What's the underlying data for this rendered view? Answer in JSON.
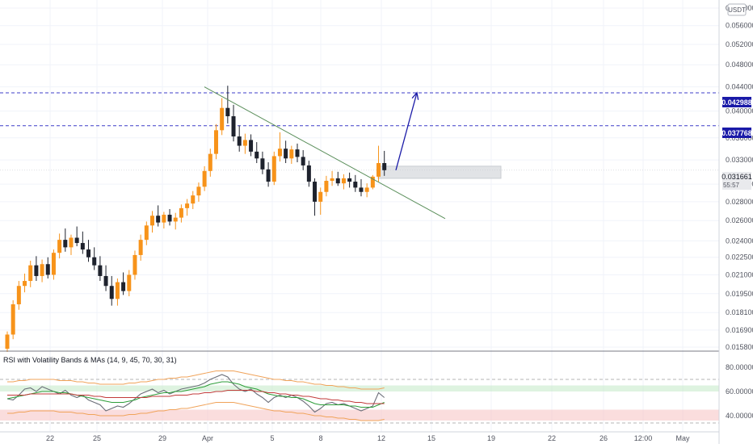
{
  "currency": "USDT",
  "indicator_title": "RSI with Volatility Bands & MAs (14, 9, 45, 70, 30, 31)",
  "price_axis": {
    "ticks": [
      "0.060000",
      "0.056000",
      "0.052000",
      "0.048000",
      "0.044000",
      "0.040000",
      "0.036000",
      "0.033000",
      "0.030000",
      "0.028000",
      "0.026000",
      "0.024000",
      "0.022500",
      "0.021000",
      "0.019500",
      "0.018100",
      "0.016900",
      "0.015800"
    ]
  },
  "rsi_axis": {
    "ticks": [
      "80.000000",
      "60.000000",
      "40.000000"
    ]
  },
  "date_axis": {
    "ticks": [
      "22",
      "25",
      "29",
      "Apr",
      "5",
      "8",
      "12",
      "15",
      "19",
      "22",
      "26",
      "12:00",
      "May"
    ]
  },
  "level_labels": [
    {
      "text": "0.042988",
      "color": "#1a1aa8"
    },
    {
      "text": "0.037768",
      "color": "#1a1aa8"
    }
  ],
  "current_price": {
    "text": "0.031661",
    "countdown": "55:57"
  },
  "colors": {
    "up": "#f7931a",
    "down": "#1e222d",
    "level": "#3d3dc8",
    "trend": "#5b8f5b",
    "arrow": "#1c1ca8"
  },
  "chart_data": {
    "type": "candlestick",
    "scale": "log",
    "grid": true,
    "ylim": [
      0.0158,
      0.06
    ],
    "levels": [
      0.042988,
      0.037768
    ],
    "candles": [
      [
        0.0157,
        0.0168,
        0.0155,
        0.0166
      ],
      [
        0.0166,
        0.019,
        0.0163,
        0.0187
      ],
      [
        0.0187,
        0.0205,
        0.0183,
        0.0201
      ],
      [
        0.0201,
        0.0211,
        0.0196,
        0.0205
      ],
      [
        0.0205,
        0.0222,
        0.02,
        0.0218
      ],
      [
        0.0218,
        0.0226,
        0.0205,
        0.0209
      ],
      [
        0.0209,
        0.0223,
        0.0204,
        0.0219
      ],
      [
        0.0219,
        0.0225,
        0.0207,
        0.021
      ],
      [
        0.021,
        0.0232,
        0.0206,
        0.0229
      ],
      [
        0.0229,
        0.0247,
        0.0224,
        0.0241
      ],
      [
        0.0241,
        0.0252,
        0.023,
        0.0234
      ],
      [
        0.0234,
        0.0246,
        0.0227,
        0.0243
      ],
      [
        0.0243,
        0.0254,
        0.0235,
        0.0238
      ],
      [
        0.0238,
        0.0249,
        0.0228,
        0.0232
      ],
      [
        0.0232,
        0.0241,
        0.0221,
        0.0225
      ],
      [
        0.0225,
        0.0234,
        0.0214,
        0.0218
      ],
      [
        0.0218,
        0.0226,
        0.0205,
        0.0209
      ],
      [
        0.0209,
        0.0218,
        0.0197,
        0.0201
      ],
      [
        0.0201,
        0.0209,
        0.0186,
        0.0191
      ],
      [
        0.0191,
        0.0207,
        0.0186,
        0.0204
      ],
      [
        0.0204,
        0.0212,
        0.0194,
        0.0197
      ],
      [
        0.0197,
        0.0214,
        0.0193,
        0.021
      ],
      [
        0.021,
        0.0231,
        0.0206,
        0.0227
      ],
      [
        0.0227,
        0.0246,
        0.0222,
        0.0241
      ],
      [
        0.0241,
        0.0259,
        0.0236,
        0.0255
      ],
      [
        0.0255,
        0.027,
        0.0248,
        0.0265
      ],
      [
        0.0265,
        0.0276,
        0.0254,
        0.0258
      ],
      [
        0.0258,
        0.0269,
        0.0252,
        0.0266
      ],
      [
        0.0266,
        0.0272,
        0.0255,
        0.0259
      ],
      [
        0.0259,
        0.0268,
        0.0251,
        0.0263
      ],
      [
        0.0263,
        0.0277,
        0.0258,
        0.0273
      ],
      [
        0.0273,
        0.0283,
        0.0265,
        0.0278
      ],
      [
        0.0278,
        0.0292,
        0.0272,
        0.0287
      ],
      [
        0.0287,
        0.0302,
        0.028,
        0.0297
      ],
      [
        0.0297,
        0.0322,
        0.0292,
        0.0316
      ],
      [
        0.0316,
        0.0345,
        0.0309,
        0.0338
      ],
      [
        0.0338,
        0.038,
        0.0331,
        0.0371
      ],
      [
        0.0371,
        0.0421,
        0.0364,
        0.0405
      ],
      [
        0.0405,
        0.0442,
        0.0381,
        0.0392
      ],
      [
        0.0392,
        0.041,
        0.0355,
        0.0362
      ],
      [
        0.0362,
        0.0378,
        0.0341,
        0.0349
      ],
      [
        0.0349,
        0.0366,
        0.0338,
        0.0357
      ],
      [
        0.0357,
        0.0365,
        0.0335,
        0.0341
      ],
      [
        0.0341,
        0.0354,
        0.0326,
        0.0332
      ],
      [
        0.0332,
        0.0341,
        0.0312,
        0.0318
      ],
      [
        0.0318,
        0.0327,
        0.0297,
        0.0303
      ],
      [
        0.0303,
        0.0341,
        0.0299,
        0.0335
      ],
      [
        0.0335,
        0.0368,
        0.0328,
        0.0345
      ],
      [
        0.0345,
        0.0356,
        0.0326,
        0.0332
      ],
      [
        0.0332,
        0.0349,
        0.0325,
        0.0344
      ],
      [
        0.0344,
        0.0352,
        0.0327,
        0.0334
      ],
      [
        0.0334,
        0.0343,
        0.0317,
        0.0323
      ],
      [
        0.0323,
        0.0329,
        0.0297,
        0.0303
      ],
      [
        0.0303,
        0.0307,
        0.0265,
        0.028
      ],
      [
        0.028,
        0.0296,
        0.0266,
        0.0291
      ],
      [
        0.0291,
        0.031,
        0.0286,
        0.0304
      ],
      [
        0.0304,
        0.0316,
        0.0298,
        0.0307
      ],
      [
        0.0307,
        0.0315,
        0.0298,
        0.0301
      ],
      [
        0.0301,
        0.0312,
        0.0294,
        0.0307
      ],
      [
        0.0307,
        0.0314,
        0.0296,
        0.0303
      ],
      [
        0.0303,
        0.0311,
        0.0291,
        0.0296
      ],
      [
        0.0296,
        0.0306,
        0.0286,
        0.0291
      ],
      [
        0.0291,
        0.0301,
        0.0285,
        0.0296
      ],
      [
        0.0296,
        0.0311,
        0.0294,
        0.0309
      ],
      [
        0.0309,
        0.0349,
        0.0303,
        0.0326
      ],
      [
        0.0326,
        0.0342,
        0.031,
        0.0317
      ]
    ],
    "trendline": {
      "from": [
        "Mar 31",
        0.044
      ],
      "to": [
        "Apr 14",
        0.0262
      ]
    },
    "target_arrow": {
      "from": [
        "Apr 12",
        0.0317
      ],
      "to": [
        "Apr 13",
        0.043
      ]
    },
    "support_zone": [
      0.0307,
      0.0322
    ],
    "rsi": {
      "ylim": [
        30,
        90
      ],
      "overbought": 70,
      "oversold": 30,
      "band_high": [
        60,
        65
      ],
      "band_low": [
        36,
        45
      ],
      "series": [
        {
          "values": [
            54,
            53,
            57,
            62,
            63,
            60,
            64,
            62,
            60,
            58,
            61,
            57,
            55,
            57,
            53,
            51,
            49,
            44,
            46,
            48,
            47,
            50,
            54,
            58,
            60,
            62,
            59,
            61,
            58,
            60,
            62,
            63,
            64,
            65,
            67,
            70,
            72,
            74,
            72,
            66,
            62,
            60,
            62,
            58,
            55,
            51,
            55,
            57,
            55,
            57,
            55,
            52,
            48,
            43,
            46,
            50,
            51,
            49,
            50,
            48,
            46,
            44,
            46,
            48,
            59,
            55
          ]
        },
        {
          "values": [
            54,
            55,
            56,
            57,
            58,
            59,
            60,
            60,
            60,
            59,
            59,
            58,
            57,
            56,
            55,
            54,
            53,
            52,
            51,
            51,
            51,
            52,
            53,
            55,
            56,
            57,
            58,
            59,
            59,
            60,
            60,
            61,
            62,
            63,
            64,
            66,
            67,
            68,
            68,
            67,
            66,
            64,
            63,
            62,
            60,
            58,
            57,
            56,
            56,
            55,
            55,
            54,
            52,
            50,
            49,
            49,
            49,
            49,
            49,
            48,
            48,
            47,
            47,
            47,
            49,
            51
          ]
        },
        {
          "values": [
            57,
            57,
            57,
            57,
            58,
            58,
            58,
            58,
            58,
            58,
            58,
            58,
            57,
            57,
            57,
            56,
            56,
            55,
            55,
            55,
            55,
            55,
            55,
            55,
            55,
            56,
            56,
            56,
            56,
            57,
            57,
            57,
            58,
            58,
            59,
            59,
            60,
            60,
            61,
            61,
            61,
            61,
            61,
            60,
            60,
            59,
            59,
            58,
            58,
            57,
            57,
            56,
            56,
            55,
            54,
            54,
            53,
            53,
            52,
            52,
            51,
            51,
            50,
            50,
            50,
            50
          ]
        },
        {
          "values": [
            68,
            68,
            69,
            69,
            70,
            70,
            70,
            70,
            70,
            69,
            69,
            69,
            68,
            68,
            67,
            67,
            66,
            66,
            66,
            66,
            66,
            67,
            67,
            68,
            68,
            69,
            70,
            70,
            71,
            71,
            72,
            72,
            73,
            74,
            75,
            76,
            77,
            77,
            77,
            77,
            76,
            75,
            74,
            73,
            72,
            71,
            70,
            70,
            69,
            69,
            68,
            68,
            67,
            66,
            66,
            65,
            65,
            64,
            64,
            63,
            63,
            62,
            62,
            62,
            62,
            63
          ]
        },
        {
          "values": [
            42,
            42,
            43,
            43,
            44,
            44,
            44,
            44,
            44,
            43,
            43,
            43,
            42,
            42,
            41,
            41,
            40,
            40,
            40,
            40,
            40,
            41,
            41,
            42,
            42,
            43,
            44,
            44,
            45,
            45,
            46,
            46,
            47,
            48,
            49,
            50,
            51,
            51,
            51,
            51,
            50,
            49,
            48,
            47,
            46,
            45,
            44,
            44,
            43,
            43,
            42,
            42,
            41,
            40,
            40,
            39,
            39,
            38,
            38,
            37,
            37,
            36,
            36,
            36,
            36,
            37
          ]
        }
      ]
    }
  }
}
